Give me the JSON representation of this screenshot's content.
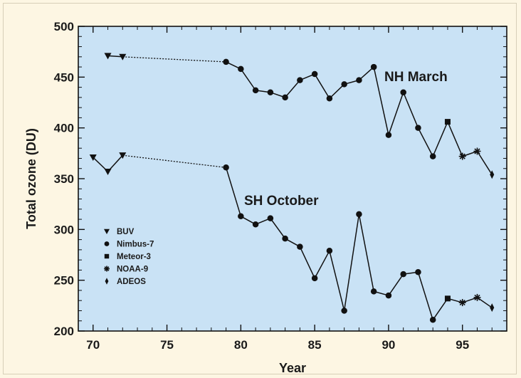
{
  "chart_data": {
    "type": "line",
    "title": "",
    "xlabel": "Year",
    "ylabel": "Total ozone (DU)",
    "xlim": [
      69,
      98
    ],
    "ylim": [
      200,
      500
    ],
    "x_ticks": [
      70,
      75,
      80,
      85,
      90,
      95
    ],
    "y_ticks": [
      200,
      250,
      300,
      350,
      400,
      450,
      500
    ],
    "grid": false,
    "legend_position": "lower-left",
    "colors": {
      "plot_background": "#c9e2f5",
      "page_background": "#fdf6e3",
      "line": "#111111"
    },
    "instruments": [
      {
        "name": "BUV",
        "marker": "triangle-down"
      },
      {
        "name": "Nimbus-7",
        "marker": "circle"
      },
      {
        "name": "Meteor-3",
        "marker": "square"
      },
      {
        "name": "NOAA-9",
        "marker": "star"
      },
      {
        "name": "ADEOS",
        "marker": "diamond"
      }
    ],
    "series": [
      {
        "label": "NH March",
        "points": [
          {
            "x": 71,
            "y": 471,
            "instrument": "BUV"
          },
          {
            "x": 72,
            "y": 470,
            "instrument": "BUV"
          },
          {
            "x": 79,
            "y": 465,
            "instrument": "Nimbus-7"
          },
          {
            "x": 80,
            "y": 458,
            "instrument": "Nimbus-7"
          },
          {
            "x": 81,
            "y": 437,
            "instrument": "Nimbus-7"
          },
          {
            "x": 82,
            "y": 435,
            "instrument": "Nimbus-7"
          },
          {
            "x": 83,
            "y": 430,
            "instrument": "Nimbus-7"
          },
          {
            "x": 84,
            "y": 447,
            "instrument": "Nimbus-7"
          },
          {
            "x": 85,
            "y": 453,
            "instrument": "Nimbus-7"
          },
          {
            "x": 86,
            "y": 429,
            "instrument": "Nimbus-7"
          },
          {
            "x": 87,
            "y": 443,
            "instrument": "Nimbus-7"
          },
          {
            "x": 88,
            "y": 447,
            "instrument": "Nimbus-7"
          },
          {
            "x": 89,
            "y": 460,
            "instrument": "Nimbus-7"
          },
          {
            "x": 90,
            "y": 393,
            "instrument": "Nimbus-7"
          },
          {
            "x": 91,
            "y": 435,
            "instrument": "Nimbus-7"
          },
          {
            "x": 92,
            "y": 400,
            "instrument": "Nimbus-7"
          },
          {
            "x": 93,
            "y": 372,
            "instrument": "Nimbus-7"
          },
          {
            "x": 94,
            "y": 406,
            "instrument": "Meteor-3"
          },
          {
            "x": 95,
            "y": 372,
            "instrument": "NOAA-9"
          },
          {
            "x": 96,
            "y": 377,
            "instrument": "NOAA-9"
          },
          {
            "x": 97,
            "y": 354,
            "instrument": "ADEOS"
          }
        ]
      },
      {
        "label": "SH October",
        "points": [
          {
            "x": 70,
            "y": 371,
            "instrument": "BUV"
          },
          {
            "x": 71,
            "y": 357,
            "instrument": "BUV"
          },
          {
            "x": 72,
            "y": 373,
            "instrument": "BUV"
          },
          {
            "x": 79,
            "y": 361,
            "instrument": "Nimbus-7"
          },
          {
            "x": 80,
            "y": 313,
            "instrument": "Nimbus-7"
          },
          {
            "x": 81,
            "y": 305,
            "instrument": "Nimbus-7"
          },
          {
            "x": 82,
            "y": 311,
            "instrument": "Nimbus-7"
          },
          {
            "x": 83,
            "y": 291,
            "instrument": "Nimbus-7"
          },
          {
            "x": 84,
            "y": 283,
            "instrument": "Nimbus-7"
          },
          {
            "x": 85,
            "y": 252,
            "instrument": "Nimbus-7"
          },
          {
            "x": 86,
            "y": 279,
            "instrument": "Nimbus-7"
          },
          {
            "x": 87,
            "y": 220,
            "instrument": "Nimbus-7"
          },
          {
            "x": 88,
            "y": 315,
            "instrument": "Nimbus-7"
          },
          {
            "x": 89,
            "y": 239,
            "instrument": "Nimbus-7"
          },
          {
            "x": 90,
            "y": 235,
            "instrument": "Nimbus-7"
          },
          {
            "x": 91,
            "y": 256,
            "instrument": "Nimbus-7"
          },
          {
            "x": 92,
            "y": 258,
            "instrument": "Nimbus-7"
          },
          {
            "x": 93,
            "y": 211,
            "instrument": "Nimbus-7"
          },
          {
            "x": 94,
            "y": 232,
            "instrument": "Meteor-3"
          },
          {
            "x": 95,
            "y": 228,
            "instrument": "NOAA-9"
          },
          {
            "x": 96,
            "y": 233,
            "instrument": "NOAA-9"
          },
          {
            "x": 97,
            "y": 223,
            "instrument": "ADEOS"
          }
        ]
      }
    ],
    "dotted_gap": {
      "from_x": 72,
      "to_x": 79
    }
  }
}
